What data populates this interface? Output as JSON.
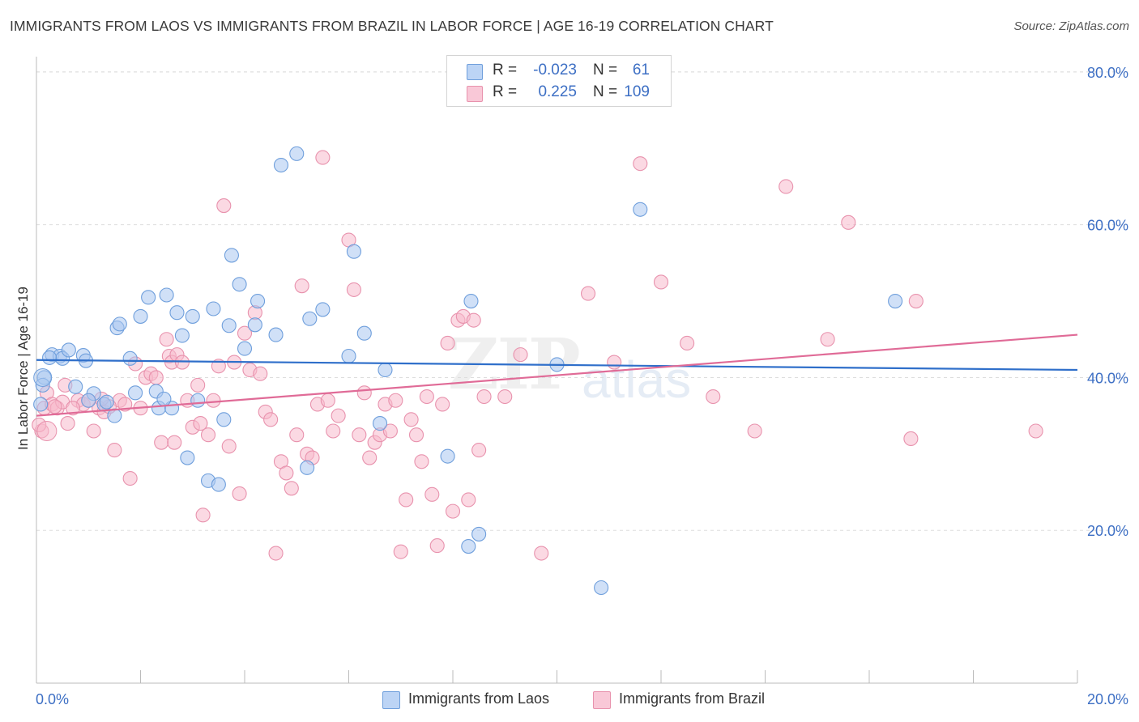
{
  "title": "IMMIGRANTS FROM LAOS VS IMMIGRANTS FROM BRAZIL IN LABOR FORCE | AGE 16-19 CORRELATION CHART",
  "source": "Source: ZipAtlas.com",
  "watermark": {
    "zip": "ZIP",
    "atlas": "atlas"
  },
  "legend": {
    "laos": {
      "r_label": "R =",
      "r_value": "-0.023",
      "n_label": "N =",
      "n_value": "61"
    },
    "brazil": {
      "r_label": "R =",
      "r_value": "0.225",
      "n_label": "N =",
      "n_value": "109"
    }
  },
  "bottom_legend": {
    "laos": "Immigrants from Laos",
    "brazil": "Immigrants from Brazil"
  },
  "colors": {
    "laos_fill": "#a9c7f0",
    "laos_stroke": "#6f9fdc",
    "laos_line": "#2f6fca",
    "brazil_fill": "#f7b9cc",
    "brazil_stroke": "#e892ad",
    "brazil_line": "#e06b97",
    "tick_label": "#3d6fc4",
    "grid": "#dddddd"
  },
  "chart_data": {
    "type": "scatter",
    "title": "IMMIGRANTS FROM LAOS VS IMMIGRANTS FROM BRAZIL IN LABOR FORCE | AGE 16-19 CORRELATION CHART",
    "xlabel": "",
    "ylabel": "In Labor Force | Age 16-19",
    "xlim": [
      0,
      20
    ],
    "ylim": [
      0,
      82
    ],
    "x_tick_labels": [
      "0.0%",
      "20.0%"
    ],
    "y_ticks": [
      20,
      40,
      60,
      80
    ],
    "y_tick_labels": [
      "20.0%",
      "40.0%",
      "60.0%",
      "80.0%"
    ],
    "grid": true,
    "legend_position": "top-center",
    "series": [
      {
        "name": "Immigrants from Laos",
        "trend": {
          "x": [
            0,
            20
          ],
          "y": [
            42.3,
            41.0
          ]
        },
        "points": [
          [
            0.15,
            40.0
          ],
          [
            0.12,
            39.0
          ],
          [
            0.3,
            43.0
          ],
          [
            0.45,
            42.8
          ],
          [
            0.5,
            42.5
          ],
          [
            0.62,
            43.6
          ],
          [
            0.9,
            42.9
          ],
          [
            0.95,
            42.2
          ],
          [
            1.1,
            37.9
          ],
          [
            1.3,
            36.5
          ],
          [
            1.55,
            46.5
          ],
          [
            1.6,
            47.0
          ],
          [
            1.8,
            42.5
          ],
          [
            1.9,
            38.0
          ],
          [
            2.0,
            48.0
          ],
          [
            2.15,
            50.5
          ],
          [
            2.3,
            38.2
          ],
          [
            2.35,
            36.0
          ],
          [
            2.5,
            50.8
          ],
          [
            2.6,
            36.0
          ],
          [
            2.7,
            48.5
          ],
          [
            2.8,
            45.5
          ],
          [
            2.9,
            29.5
          ],
          [
            3.0,
            48.0
          ],
          [
            3.1,
            37.0
          ],
          [
            3.3,
            26.5
          ],
          [
            3.4,
            49.0
          ],
          [
            3.5,
            26.0
          ],
          [
            3.6,
            34.5
          ],
          [
            3.7,
            46.8
          ],
          [
            3.75,
            56.0
          ],
          [
            3.9,
            52.2
          ],
          [
            4.0,
            43.8
          ],
          [
            4.2,
            46.9
          ],
          [
            4.25,
            50.0
          ],
          [
            4.6,
            45.6
          ],
          [
            4.7,
            67.8
          ],
          [
            5.0,
            69.3
          ],
          [
            5.2,
            28.2
          ],
          [
            5.25,
            47.7
          ],
          [
            5.5,
            48.9
          ],
          [
            6.0,
            42.8
          ],
          [
            6.1,
            56.5
          ],
          [
            6.3,
            45.8
          ],
          [
            6.6,
            34.0
          ],
          [
            6.7,
            41.0
          ],
          [
            7.9,
            29.7
          ],
          [
            8.3,
            17.9
          ],
          [
            8.35,
            50.0
          ],
          [
            8.5,
            19.5
          ],
          [
            10.0,
            41.7
          ],
          [
            10.85,
            12.5
          ],
          [
            11.6,
            62.0
          ],
          [
            16.5,
            50.0
          ],
          [
            0.08,
            36.5
          ],
          [
            1.5,
            35.0
          ],
          [
            1.0,
            37.0
          ],
          [
            2.45,
            37.2
          ],
          [
            1.35,
            36.8
          ],
          [
            0.75,
            38.8
          ],
          [
            0.25,
            42.6
          ]
        ]
      },
      {
        "name": "Immigrants from Brazil",
        "trend": {
          "x": [
            0,
            20
          ],
          "y": [
            35.0,
            45.6
          ]
        },
        "points": [
          [
            0.1,
            33.0
          ],
          [
            0.15,
            36.0
          ],
          [
            0.2,
            38.0
          ],
          [
            0.3,
            36.5
          ],
          [
            0.4,
            36.0
          ],
          [
            0.5,
            36.8
          ],
          [
            0.55,
            39.0
          ],
          [
            0.6,
            34.0
          ],
          [
            0.8,
            37.0
          ],
          [
            0.9,
            36.5
          ],
          [
            1.0,
            37.0
          ],
          [
            1.1,
            33.0
          ],
          [
            1.2,
            36.0
          ],
          [
            1.3,
            35.5
          ],
          [
            1.5,
            30.5
          ],
          [
            1.6,
            37.0
          ],
          [
            1.7,
            36.5
          ],
          [
            1.8,
            26.8
          ],
          [
            1.9,
            41.8
          ],
          [
            2.0,
            36.0
          ],
          [
            2.1,
            40.0
          ],
          [
            2.2,
            40.5
          ],
          [
            2.3,
            40.0
          ],
          [
            2.4,
            31.5
          ],
          [
            2.5,
            45.0
          ],
          [
            2.55,
            42.8
          ],
          [
            2.6,
            42.0
          ],
          [
            2.7,
            43.0
          ],
          [
            2.8,
            42.0
          ],
          [
            2.9,
            37.0
          ],
          [
            3.0,
            33.5
          ],
          [
            3.1,
            39.0
          ],
          [
            3.2,
            22.0
          ],
          [
            3.3,
            32.5
          ],
          [
            3.4,
            37.0
          ],
          [
            3.5,
            41.5
          ],
          [
            3.6,
            62.5
          ],
          [
            3.7,
            31.0
          ],
          [
            3.8,
            42.0
          ],
          [
            3.9,
            24.8
          ],
          [
            4.0,
            45.8
          ],
          [
            4.1,
            41.0
          ],
          [
            4.2,
            48.5
          ],
          [
            4.3,
            40.5
          ],
          [
            4.4,
            35.5
          ],
          [
            4.5,
            34.5
          ],
          [
            4.6,
            17.0
          ],
          [
            4.7,
            29.0
          ],
          [
            4.8,
            27.5
          ],
          [
            4.9,
            25.5
          ],
          [
            5.0,
            32.5
          ],
          [
            5.1,
            52.0
          ],
          [
            5.2,
            30.0
          ],
          [
            5.3,
            29.5
          ],
          [
            5.4,
            36.5
          ],
          [
            5.5,
            68.8
          ],
          [
            5.6,
            37.0
          ],
          [
            5.7,
            33.0
          ],
          [
            5.8,
            35.0
          ],
          [
            6.0,
            58.0
          ],
          [
            6.1,
            51.5
          ],
          [
            6.2,
            32.5
          ],
          [
            6.3,
            38.0
          ],
          [
            6.4,
            29.5
          ],
          [
            6.5,
            31.5
          ],
          [
            6.6,
            32.5
          ],
          [
            6.7,
            36.5
          ],
          [
            6.8,
            33.0
          ],
          [
            6.9,
            37.0
          ],
          [
            7.0,
            17.2
          ],
          [
            7.1,
            24.0
          ],
          [
            7.2,
            34.5
          ],
          [
            7.3,
            32.5
          ],
          [
            7.4,
            29.0
          ],
          [
            7.5,
            37.5
          ],
          [
            7.6,
            24.7
          ],
          [
            7.7,
            18.0
          ],
          [
            7.8,
            36.5
          ],
          [
            7.9,
            44.5
          ],
          [
            8.0,
            22.5
          ],
          [
            8.1,
            47.5
          ],
          [
            8.2,
            48.0
          ],
          [
            8.3,
            24.0
          ],
          [
            8.4,
            47.5
          ],
          [
            8.5,
            30.5
          ],
          [
            8.6,
            37.5
          ],
          [
            9.0,
            37.5
          ],
          [
            9.3,
            43.0
          ],
          [
            9.7,
            17.0
          ],
          [
            10.6,
            51.0
          ],
          [
            11.1,
            42.0
          ],
          [
            11.6,
            68.0
          ],
          [
            12.0,
            52.5
          ],
          [
            12.5,
            44.5
          ],
          [
            13.0,
            37.5
          ],
          [
            13.8,
            33.0
          ],
          [
            14.4,
            65.0
          ],
          [
            15.2,
            45.0
          ],
          [
            15.6,
            60.3
          ],
          [
            16.8,
            32.0
          ],
          [
            16.9,
            50.0
          ],
          [
            19.2,
            33.0
          ],
          [
            0.05,
            33.8
          ],
          [
            0.35,
            36.2
          ],
          [
            0.7,
            36.0
          ],
          [
            1.4,
            36.2
          ],
          [
            2.65,
            31.5
          ],
          [
            3.15,
            34.0
          ],
          [
            1.25,
            37.2
          ]
        ]
      }
    ]
  }
}
